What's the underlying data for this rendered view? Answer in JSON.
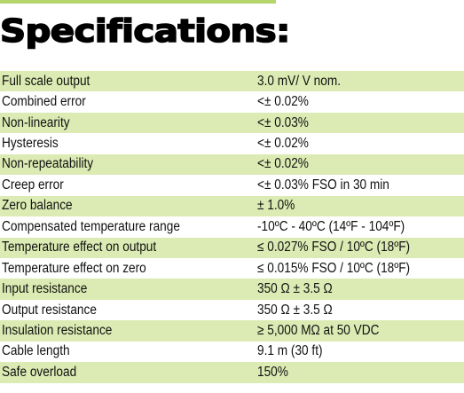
{
  "title": "Specifications:",
  "colors": {
    "accent": "#b5d56a",
    "row_shade": "#dcebb3"
  },
  "specs": [
    {
      "name": "Full scale output",
      "value": "3.0 mV/ V nom."
    },
    {
      "name": "Combined error",
      "value": "<± 0.02%"
    },
    {
      "name": "Non-linearity",
      "value": "<± 0.03%"
    },
    {
      "name": "Hysteresis",
      "value": "<± 0.02%"
    },
    {
      "name": "Non-repeatability",
      "value": "<± 0.02%"
    },
    {
      "name": "Creep error",
      "value": "<± 0.03% FSO in 30 min"
    },
    {
      "name": "Zero balance",
      "value": "± 1.0%"
    },
    {
      "name": "Compensated temperature range",
      "value": "-10ºC - 40ºC (14ºF - 104ºF)"
    },
    {
      "name": "Temperature effect on output",
      "value": "≤ 0.027% FSO / 10ºC (18ºF)"
    },
    {
      "name": "Temperature effect on zero",
      "value": "≤ 0.015% FSO / 10ºC (18ºF)"
    },
    {
      "name": "Input resistance",
      "value": "350 Ω ± 3.5 Ω"
    },
    {
      "name": "Output resistance",
      "value": "350 Ω ± 3.5 Ω"
    },
    {
      "name": "Insulation resistance",
      "value": "≥ 5,000 MΩ at 50 VDC"
    },
    {
      "name": "Cable length",
      "value": "9.1 m (30 ft)"
    },
    {
      "name": "Safe overload",
      "value": "150%"
    }
  ]
}
